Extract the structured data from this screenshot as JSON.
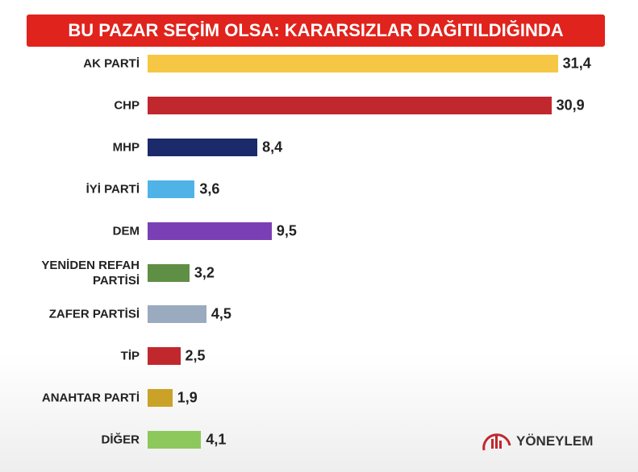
{
  "chart_data": {
    "type": "bar",
    "orientation": "horizontal",
    "title": "BU PAZAR SEÇİM OLSA: KARARSIZLAR DAĞITILDIĞINDA",
    "categories": [
      "AK PARTİ",
      "CHP",
      "MHP",
      "İYİ PARTİ",
      "DEM",
      "YENİDEN REFAH PARTİSİ",
      "ZAFER PARTİSİ",
      "TİP",
      "ANAHTAR PARTİ",
      "DİĞER"
    ],
    "values": [
      31.4,
      30.9,
      8.4,
      3.6,
      9.5,
      3.2,
      4.5,
      2.5,
      1.9,
      4.1
    ],
    "value_labels": [
      "31,4",
      "30,9",
      "8,4",
      "3,6",
      "9,5",
      "3,2",
      "4,5",
      "2,5",
      "1,9",
      "4,1"
    ],
    "colors": [
      "#f6c744",
      "#c0282d",
      "#1b2a6b",
      "#4fb3e8",
      "#7b3fb5",
      "#5f8f45",
      "#9aaabf",
      "#c0282d",
      "#c9a227",
      "#8dc85c"
    ],
    "source": "YÖNEYLEM"
  }
}
